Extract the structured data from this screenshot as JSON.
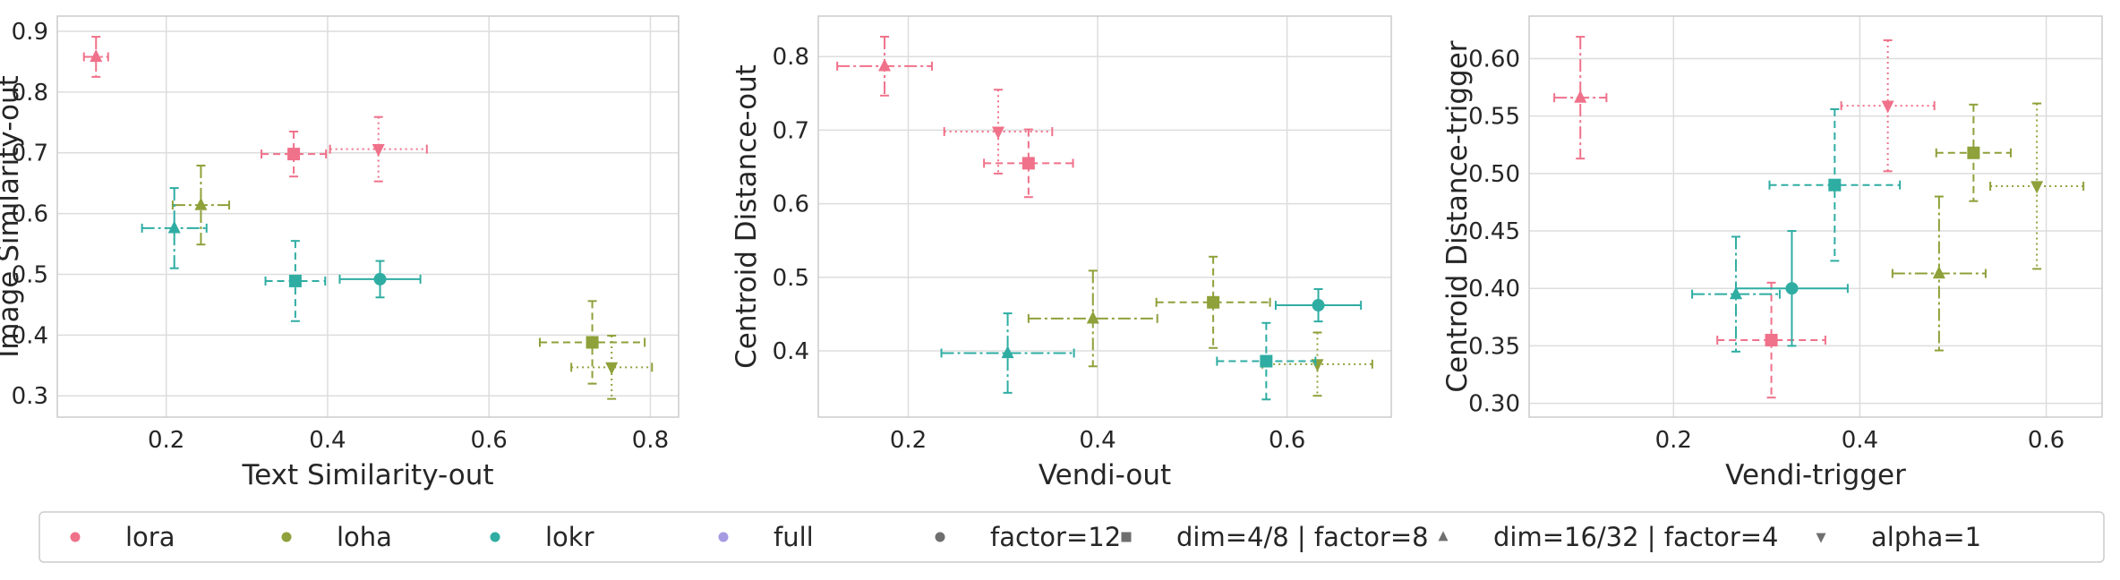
{
  "colors": {
    "lora": "#f0718a",
    "loha": "#8ea13a",
    "lokr": "#2fada3",
    "full": "#a69ae3",
    "neutral": "#6f6f6f",
    "grid": "#dddddd",
    "frame": "#cccccc"
  },
  "legend": [
    {
      "label": "lora",
      "marker": "circle",
      "color": "lora"
    },
    {
      "label": "loha",
      "marker": "circle",
      "color": "loha"
    },
    {
      "label": "lokr",
      "marker": "circle",
      "color": "lokr"
    },
    {
      "label": "full",
      "marker": "circle",
      "color": "full"
    },
    {
      "label": "factor=12",
      "marker": "circle",
      "color": "neutral"
    },
    {
      "label": "dim=4/8 | factor=8",
      "marker": "square",
      "color": "neutral"
    },
    {
      "label": "dim=16/32 | factor=4",
      "marker": "triangle-up",
      "color": "neutral"
    },
    {
      "label": "alpha=1",
      "marker": "triangle-down",
      "color": "neutral"
    }
  ],
  "chart_data": [
    {
      "type": "scatter",
      "xlabel": "Text Similarity-out",
      "ylabel": "Image Similarity-out",
      "xlim": [
        0.065,
        0.835
      ],
      "ylim": [
        0.265,
        0.925
      ],
      "xticks": [
        0.2,
        0.4,
        0.6,
        0.8
      ],
      "yticks": [
        0.3,
        0.4,
        0.5,
        0.6,
        0.7,
        0.8,
        0.9
      ],
      "grid": true,
      "points": [
        {
          "algo": "lora",
          "marker": "triangle-up",
          "x": 0.113,
          "y": 0.858,
          "xerr": 0.015,
          "yerr": 0.033
        },
        {
          "algo": "lora",
          "marker": "square",
          "x": 0.358,
          "y": 0.698,
          "xerr": 0.04,
          "yerr": 0.037
        },
        {
          "algo": "lora",
          "marker": "triangle-down",
          "x": 0.463,
          "y": 0.706,
          "xerr": 0.06,
          "yerr": 0.053
        },
        {
          "algo": "loha",
          "marker": "triangle-up",
          "x": 0.243,
          "y": 0.614,
          "xerr": 0.035,
          "yerr": 0.065
        },
        {
          "algo": "loha",
          "marker": "square",
          "x": 0.728,
          "y": 0.388,
          "xerr": 0.065,
          "yerr": 0.068
        },
        {
          "algo": "loha",
          "marker": "triangle-down",
          "x": 0.752,
          "y": 0.347,
          "xerr": 0.05,
          "yerr": 0.052
        },
        {
          "algo": "lokr",
          "marker": "triangle-up",
          "x": 0.21,
          "y": 0.576,
          "xerr": 0.04,
          "yerr": 0.066
        },
        {
          "algo": "lokr",
          "marker": "square",
          "x": 0.36,
          "y": 0.489,
          "xerr": 0.037,
          "yerr": 0.066
        },
        {
          "algo": "lokr",
          "marker": "circle",
          "x": 0.465,
          "y": 0.492,
          "xerr": 0.05,
          "yerr": 0.03
        }
      ]
    },
    {
      "type": "scatter",
      "xlabel": "Vendi-out",
      "ylabel": "Centroid Distance-out",
      "xlim": [
        0.105,
        0.71
      ],
      "ylim": [
        0.31,
        0.855
      ],
      "xticks": [
        0.2,
        0.4,
        0.6
      ],
      "yticks": [
        0.4,
        0.5,
        0.6,
        0.7,
        0.8
      ],
      "grid": true,
      "points": [
        {
          "algo": "lora",
          "marker": "triangle-up",
          "x": 0.175,
          "y": 0.787,
          "xerr": 0.05,
          "yerr": 0.04
        },
        {
          "algo": "lora",
          "marker": "triangle-down",
          "x": 0.295,
          "y": 0.698,
          "xerr": 0.057,
          "yerr": 0.057
        },
        {
          "algo": "lora",
          "marker": "square",
          "x": 0.327,
          "y": 0.655,
          "xerr": 0.047,
          "yerr": 0.046
        },
        {
          "algo": "loha",
          "marker": "triangle-up",
          "x": 0.395,
          "y": 0.444,
          "xerr": 0.068,
          "yerr": 0.065
        },
        {
          "algo": "loha",
          "marker": "square",
          "x": 0.522,
          "y": 0.466,
          "xerr": 0.06,
          "yerr": 0.062
        },
        {
          "algo": "loha",
          "marker": "triangle-down",
          "x": 0.632,
          "y": 0.382,
          "xerr": 0.058,
          "yerr": 0.043
        },
        {
          "algo": "lokr",
          "marker": "triangle-up",
          "x": 0.305,
          "y": 0.397,
          "xerr": 0.07,
          "yerr": 0.054
        },
        {
          "algo": "lokr",
          "marker": "square",
          "x": 0.578,
          "y": 0.386,
          "xerr": 0.052,
          "yerr": 0.052
        },
        {
          "algo": "lokr",
          "marker": "circle",
          "x": 0.633,
          "y": 0.462,
          "xerr": 0.045,
          "yerr": 0.022
        }
      ]
    },
    {
      "type": "scatter",
      "xlabel": "Vendi-trigger",
      "ylabel": "Centroid Distance-trigger",
      "xlim": [
        0.045,
        0.66
      ],
      "ylim": [
        0.288,
        0.637
      ],
      "xticks": [
        0.2,
        0.4,
        0.6
      ],
      "yticks": [
        0.3,
        0.35,
        0.4,
        0.45,
        0.5,
        0.55,
        0.6
      ],
      "grid": true,
      "points": [
        {
          "algo": "lora",
          "marker": "triangle-up",
          "x": 0.1,
          "y": 0.566,
          "xerr": 0.028,
          "yerr": 0.053
        },
        {
          "algo": "lora",
          "marker": "triangle-down",
          "x": 0.43,
          "y": 0.559,
          "xerr": 0.05,
          "yerr": 0.057
        },
        {
          "algo": "lora",
          "marker": "square",
          "x": 0.305,
          "y": 0.355,
          "xerr": 0.058,
          "yerr": 0.05
        },
        {
          "algo": "loha",
          "marker": "square",
          "x": 0.522,
          "y": 0.518,
          "xerr": 0.04,
          "yerr": 0.042
        },
        {
          "algo": "loha",
          "marker": "triangle-down",
          "x": 0.59,
          "y": 0.489,
          "xerr": 0.05,
          "yerr": 0.072
        },
        {
          "algo": "loha",
          "marker": "triangle-up",
          "x": 0.485,
          "y": 0.413,
          "xerr": 0.05,
          "yerr": 0.067
        },
        {
          "algo": "lokr",
          "marker": "square",
          "x": 0.373,
          "y": 0.49,
          "xerr": 0.07,
          "yerr": 0.066
        },
        {
          "algo": "lokr",
          "marker": "triangle-up",
          "x": 0.267,
          "y": 0.395,
          "xerr": 0.047,
          "yerr": 0.05
        },
        {
          "algo": "lokr",
          "marker": "circle",
          "x": 0.327,
          "y": 0.4,
          "xerr": 0.06,
          "yerr": 0.05
        }
      ]
    }
  ]
}
